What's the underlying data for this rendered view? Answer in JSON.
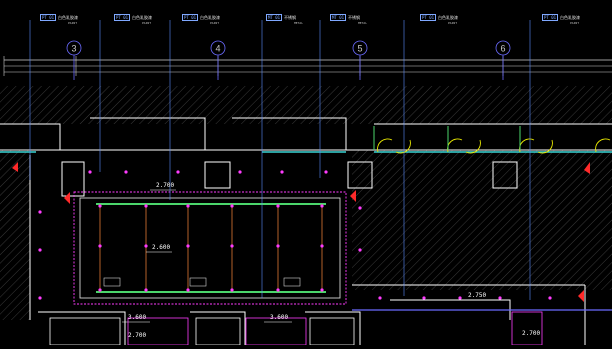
{
  "axes": [
    "3",
    "4",
    "5",
    "6"
  ],
  "callouts": [
    {
      "code": "PT 01",
      "text": "白色乳胶漆",
      "sub": "PAINT"
    },
    {
      "code": "PT 01",
      "text": "白色乳胶漆",
      "sub": "PAINT"
    },
    {
      "code": "PT 01",
      "text": "白色乳胶漆",
      "sub": "PAINT"
    },
    {
      "code": "MT 01",
      "text": "不锈钢",
      "sub": "METAL"
    },
    {
      "code": "MT 01",
      "text": "不锈钢",
      "sub": "METAL"
    },
    {
      "code": "PT 01",
      "text": "白色乳胶漆",
      "sub": "PAINT"
    },
    {
      "code": "PT 01",
      "text": "白色乳胶漆",
      "sub": "PAINT"
    }
  ],
  "dimensions": {
    "ceiling_level": "2.700",
    "center_level": "2.600",
    "right_level": "2.750",
    "bottom_left": "3.600",
    "bottom_mid": "3.600",
    "bottom_tiny": "2.700",
    "bottom_right": "2.700"
  },
  "colors": {
    "grid_line": "#6b6bff",
    "leader": "#5b8cff",
    "wall": "#ffffff",
    "hatch": "#3a3a3a",
    "ceiling_frame": "#d6d6d6",
    "magenta": "#ff3cff",
    "red": "#ff2a2a",
    "yellow": "#e8e800",
    "cyan": "#3ad6d6",
    "green": "#4bd66b"
  }
}
